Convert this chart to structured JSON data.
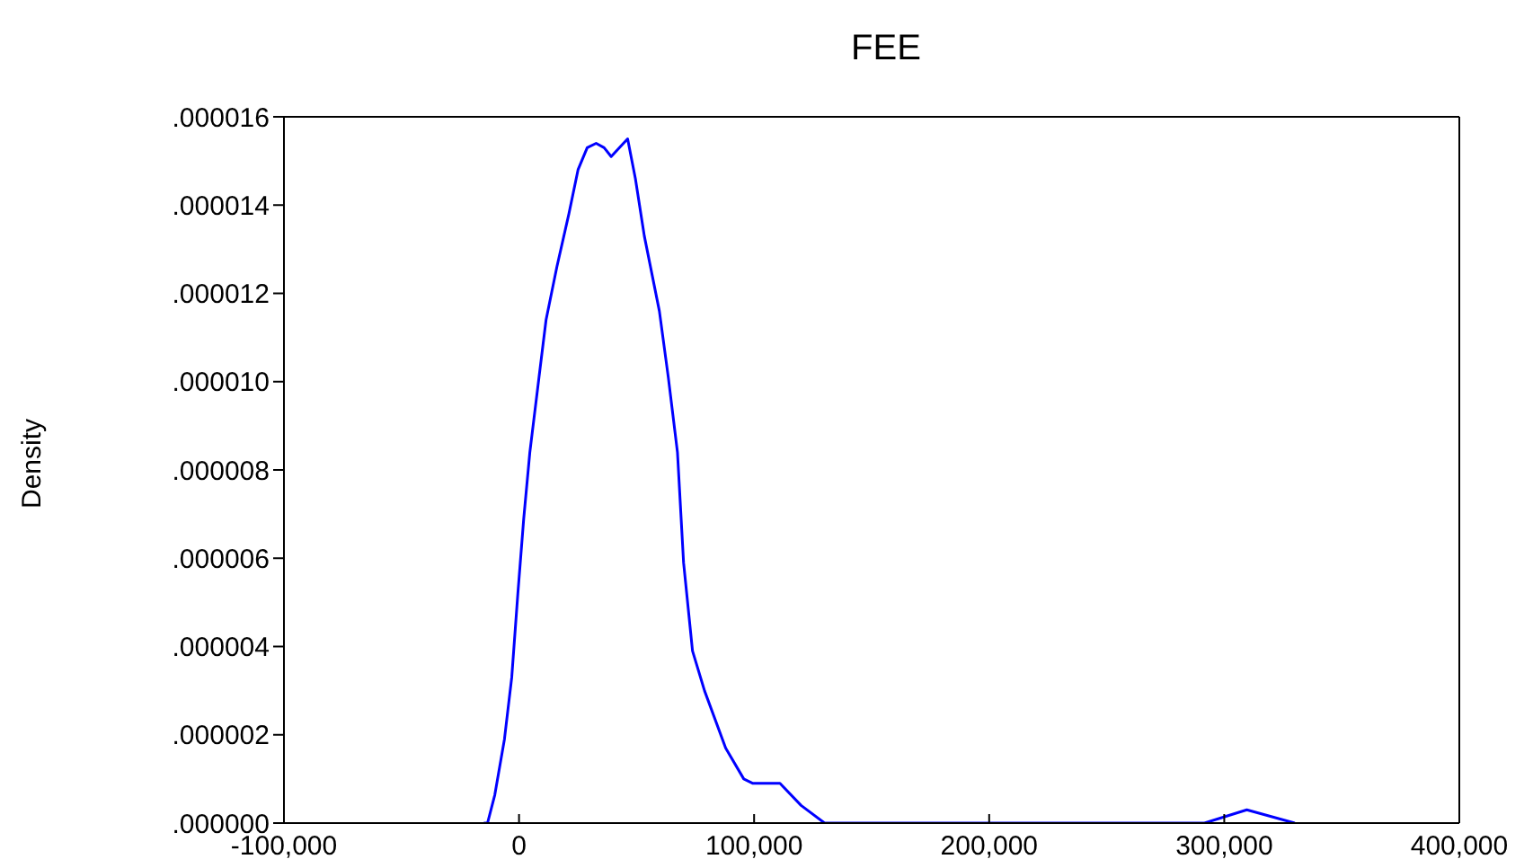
{
  "chart_data": {
    "type": "line",
    "title": "FEE",
    "ylabel": "Density",
    "x": [
      -15000,
      -13400,
      -10300,
      -6200,
      -3100,
      -500,
      2000,
      4600,
      8500,
      11500,
      16100,
      21200,
      25100,
      29000,
      32800,
      36200,
      39200,
      46200,
      49500,
      53300,
      59700,
      63500,
      67400,
      70000,
      73800,
      78900,
      87900,
      95600,
      99500,
      111000,
      120000,
      130000,
      291600,
      309600,
      330000
    ],
    "series": [
      {
        "color": "#0000ff",
        "values": [
          0,
          0,
          6.4e-07,
          1.9e-06,
          3.3e-06,
          5.2e-06,
          6.9e-06,
          8.4e-06,
          1.01e-05,
          1.14e-05,
          1.26e-05,
          1.38e-05,
          1.48e-05,
          1.53e-05,
          1.54e-05,
          1.53e-05,
          1.51e-05,
          1.55e-05,
          1.46e-05,
          1.33e-05,
          1.16e-05,
          1.01e-05,
          8.4e-06,
          5.9e-06,
          3.9e-06,
          3e-06,
          1.7e-06,
          1e-06,
          9e-07,
          9e-07,
          4e-07,
          0,
          0,
          3e-07,
          0
        ]
      }
    ],
    "xlim": [
      -100000,
      400000
    ],
    "xticks": [
      {
        "value": -100000,
        "label": "-100,000"
      },
      {
        "value": 0,
        "label": "0"
      },
      {
        "value": 100000,
        "label": "100,000"
      },
      {
        "value": 200000,
        "label": "200,000"
      },
      {
        "value": 300000,
        "label": "300,000"
      },
      {
        "value": 400000,
        "label": "400,000"
      }
    ],
    "ylim": [
      0,
      1.6e-05
    ],
    "yticks": [
      {
        "value": 0,
        "label": ".000000"
      },
      {
        "value": 2e-06,
        "label": ".000002"
      },
      {
        "value": 4e-06,
        "label": ".000004"
      },
      {
        "value": 6e-06,
        "label": ".000006"
      },
      {
        "value": 8e-06,
        "label": ".000008"
      },
      {
        "value": 1e-05,
        "label": ".000010"
      },
      {
        "value": 1.2e-05,
        "label": ".000012"
      },
      {
        "value": 1.4e-05,
        "label": ".000014"
      },
      {
        "value": 1.6e-05,
        "label": ".000016"
      }
    ],
    "grid": false,
    "legend": false,
    "marker": "none",
    "line_style": "solid"
  }
}
